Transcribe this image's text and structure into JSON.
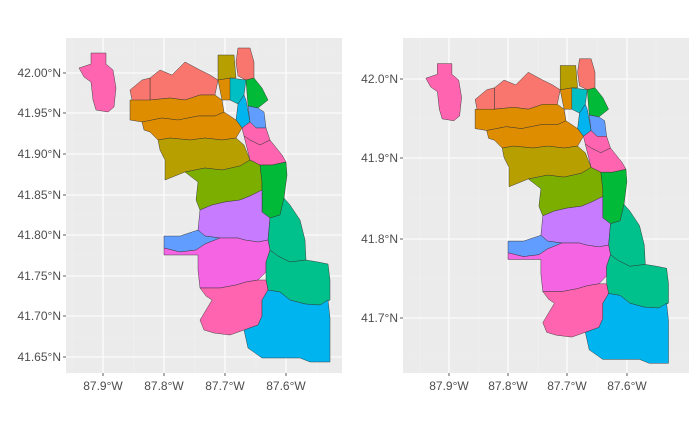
{
  "colors": {
    "panel_background": "#ebebeb",
    "grid": "#ffffff",
    "tick_text": "#4d4d4d",
    "community_palette": [
      "#F8766D",
      "#DE8C00",
      "#B79F00",
      "#7CAE00",
      "#00BA38",
      "#00C08B",
      "#00BFC4",
      "#00B4F0",
      "#619CFF",
      "#C77CFF",
      "#F564E3",
      "#FF64B0"
    ]
  },
  "map_left": {
    "x_ticks": [
      "87.9°W",
      "87.8°W",
      "87.7°W",
      "87.6°W"
    ],
    "y_ticks": [
      "41.65°N",
      "41.70°N",
      "41.75°N",
      "41.80°N",
      "41.85°N",
      "41.90°N",
      "41.95°N",
      "42.00°N"
    ],
    "x_range": [
      -87.96,
      -87.51
    ],
    "y_range": [
      41.635,
      42.03
    ]
  },
  "map_right": {
    "x_ticks": [
      "87.9°W",
      "87.8°W",
      "87.7°W",
      "87.6°W"
    ],
    "y_ticks": [
      "41.7°N",
      "41.8°N",
      "41.9°N",
      "42.0°N"
    ],
    "x_range": [
      -87.96,
      -87.51
    ],
    "y_range": [
      41.625,
      42.04
    ]
  }
}
